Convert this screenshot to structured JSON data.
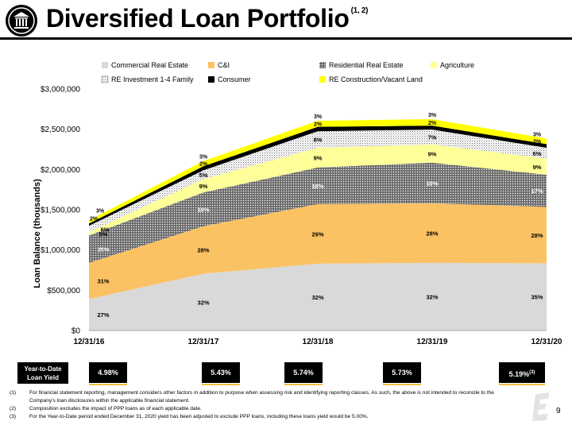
{
  "title": "Diversified Loan Portfolio",
  "title_sup": "(1, 2)",
  "chart_data": {
    "type": "area",
    "stacked": true,
    "categories": [
      "12/31/16",
      "12/31/17",
      "12/31/18",
      "12/31/19",
      "12/31/20"
    ],
    "ylabel": "Loan Balance (thousands)",
    "ylim": [
      0,
      3000000
    ],
    "yticks": [
      "$0",
      "$500,000",
      "$1,000,000",
      "$1,500,000",
      "$2,000,000",
      "$2,500,000",
      "$3,000,000"
    ],
    "legend_position": "top",
    "series": [
      {
        "name": "Commercial Real Estate",
        "color": "#d9d9d9",
        "pattern": "solid",
        "values": [
          390000,
          705000,
          830000,
          840000,
          835000
        ],
        "labels": [
          "27%",
          "32%",
          "32%",
          "32%",
          "35%"
        ]
      },
      {
        "name": "C&I",
        "color": "#fbc264",
        "pattern": "solid",
        "values": [
          450000,
          590000,
          740000,
          740000,
          700000
        ],
        "labels": [
          "31%",
          "28%",
          "29%",
          "28%",
          "28%"
        ]
      },
      {
        "name": "Residential Real Estate",
        "color": "#7a7a7a",
        "pattern": "dots-dark",
        "values": [
          340000,
          420000,
          455000,
          505000,
          400000
        ],
        "labels": [
          "25%",
          "19%",
          "18%",
          "19%",
          "17%"
        ]
      },
      {
        "name": "Agriculture",
        "color": "#ffff99",
        "pattern": "solid",
        "values": [
          40000,
          165000,
          245000,
          225000,
          200000
        ],
        "labels": [
          "5%",
          "9%",
          "9%",
          "9%",
          "9%"
        ]
      },
      {
        "name": "RE Investment 1-4 Family",
        "color": "#ffffff",
        "pattern": "dots-light",
        "values": [
          80000,
          110000,
          205000,
          185000,
          135000
        ],
        "labels": [
          "6%",
          "5%",
          "8%",
          "7%",
          "6%"
        ]
      },
      {
        "name": "Consumer",
        "color": "#000000",
        "pattern": "solid",
        "values": [
          28000,
          50000,
          55000,
          50000,
          45000
        ],
        "labels": [
          "2%",
          "2%",
          "2%",
          "2%",
          "2%"
        ]
      },
      {
        "name": "RE Construction/Vacant Land",
        "color": "#ffff00",
        "pattern": "solid",
        "values": [
          40000,
          65000,
          75000,
          80000,
          70000
        ],
        "labels": [
          "3%",
          "3%",
          "3%",
          "3%",
          "3%"
        ]
      }
    ]
  },
  "yield": {
    "label": "Year-to-Date Loan Yield",
    "values": [
      "4.98%",
      "5.43%",
      "5.74%",
      "5.73%",
      "5.19%"
    ],
    "last_sup": "(3)"
  },
  "footnotes": [
    {
      "num": "(1)",
      "text": "For financial statement reporting, management considers other factors in addition to purpose when assessing risk and identifying reporting classes.  As such, the above is not intended to reconcile to the Company's loan disclosures within the applicable financial statement."
    },
    {
      "num": "(2)",
      "text": "Composition excludes the impact of PPP loans as of each applicable date."
    },
    {
      "num": "(3)",
      "text": "For the Year-to-Date period ended December 31, 2020 yield has been adjusted to exclude PPP loans, including these loans yield would be 5.00%."
    }
  ],
  "page_number": "9",
  "icons": {
    "header_logo": "bank-building-icon",
    "footer_logo": "company-logo-icon"
  }
}
